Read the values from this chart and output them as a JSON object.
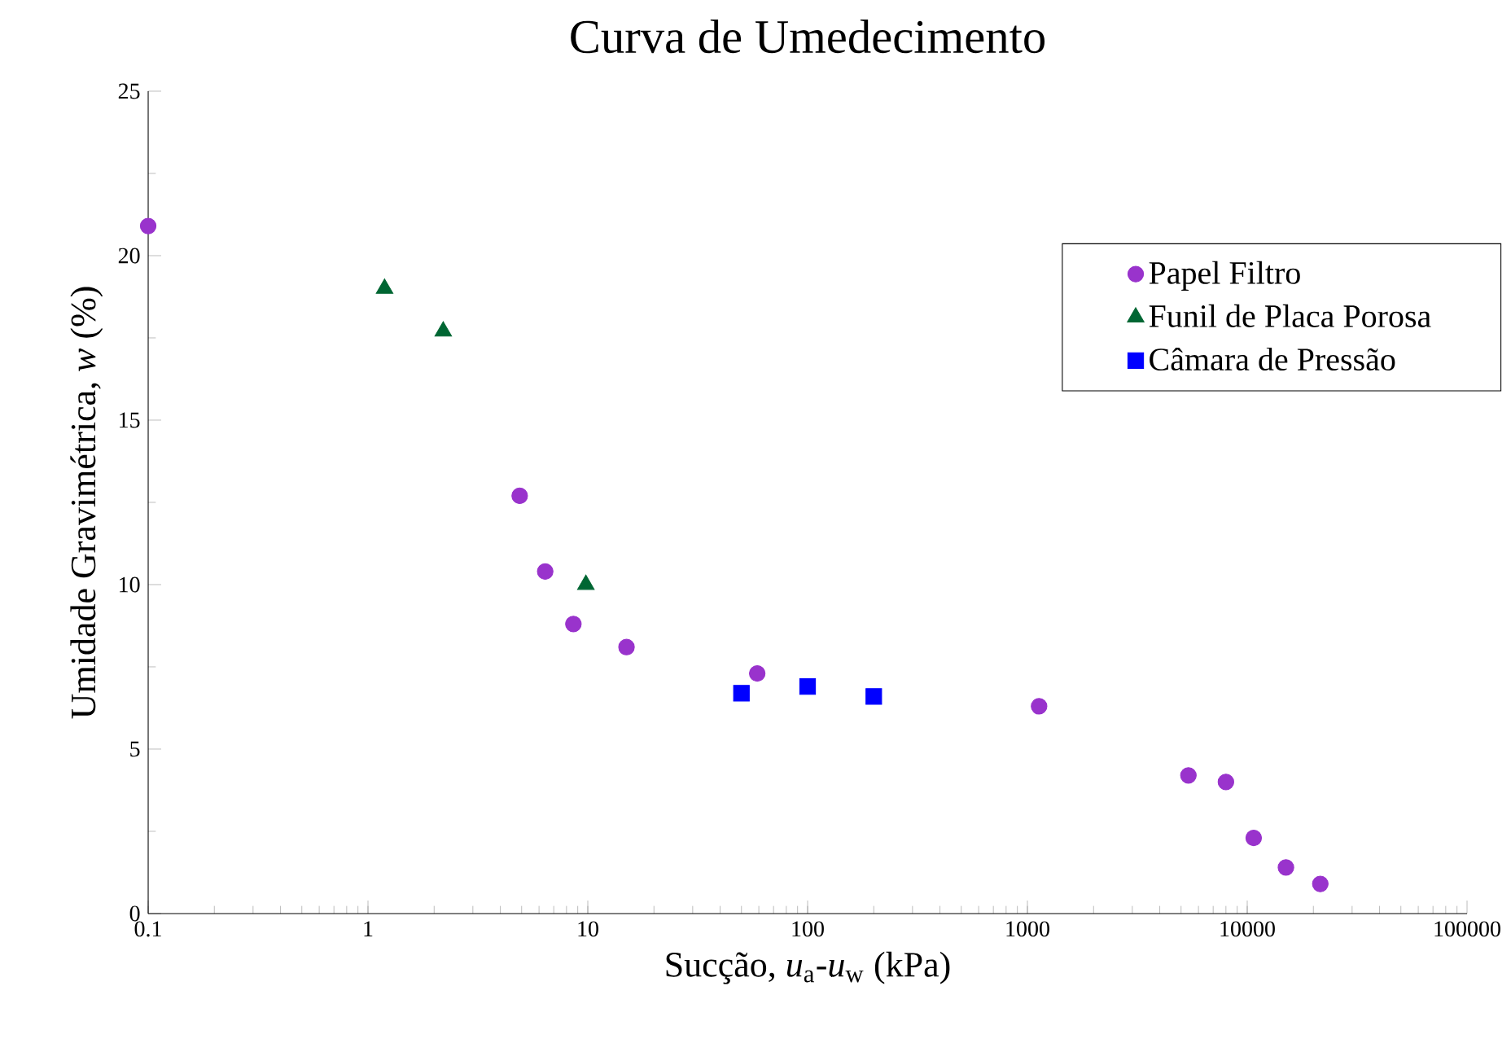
{
  "chart_data": {
    "type": "scatter",
    "title": "Curva de Umedecimento",
    "xlabel": "Sucção, *u*$_{a}$-*u*$_{w}$ (kPa)",
    "ylabel": "Umidade Gravimétrica, *w* (%)",
    "log": "x",
    "grid": false,
    "legend": "top right",
    "xlim": [
      0.1,
      100000
    ],
    "xticks": [
      0.1,
      1,
      10,
      100,
      1000,
      10000,
      100000
    ],
    "ylim": [
      0,
      25
    ],
    "yticks": [
      0,
      5,
      10,
      15,
      20,
      25
    ],
    "series": [
      {
        "name": "Papel Filtro",
        "color": "#9933cc",
        "marker": "circle",
        "x": [
          0.1,
          4.9,
          6.4,
          8.6,
          15,
          59,
          1130,
          5400,
          8000,
          10700,
          15000,
          21500
        ],
        "values": [
          20.9,
          12.7,
          10.4,
          8.8,
          8.1,
          7.3,
          6.3,
          4.2,
          4.0,
          2.3,
          1.4,
          0.9
        ]
      },
      {
        "name": "Funil de Placa Porosa",
        "color": "#006633",
        "marker": "triangle",
        "x": [
          1.19,
          2.2,
          9.8
        ],
        "values": [
          19.0,
          17.7,
          10.0
        ]
      },
      {
        "name": "Câmara de Pressão",
        "color": "#0000ff",
        "marker": "square",
        "x": [
          50,
          100,
          200
        ],
        "values": [
          6.7,
          6.9,
          6.6
        ]
      }
    ]
  }
}
